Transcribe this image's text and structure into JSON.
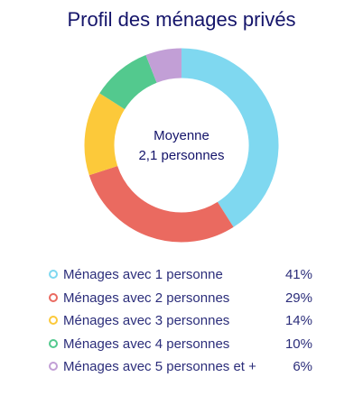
{
  "chart_data": {
    "type": "pie",
    "title": "Profil des ménages privés",
    "center_label": [
      "Moyenne",
      "2,1 personnes"
    ],
    "categories": [
      "Ménages avec 1 personne",
      "Ménages avec 2 personnes",
      "Ménages avec 3 personnes",
      "Ménages avec 4 personnes",
      "Ménages avec 5 personnes et +"
    ],
    "values": [
      41,
      29,
      14,
      10,
      6
    ],
    "value_labels": [
      "41%",
      "29%",
      "14%",
      "10%",
      "6%"
    ],
    "colors": [
      "#7fd8f0",
      "#ea6a60",
      "#fcc93a",
      "#53c98e",
      "#c29fd6"
    ],
    "legend_position": "bottom"
  }
}
